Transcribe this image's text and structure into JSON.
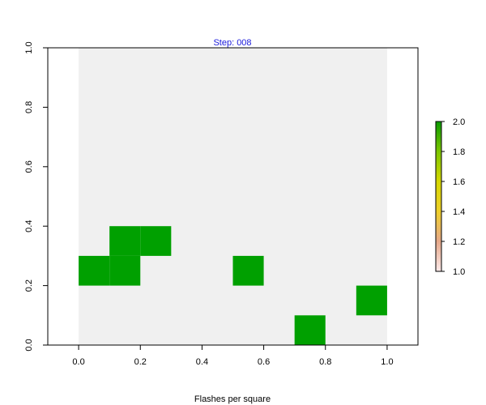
{
  "chart_data": {
    "type": "heatmap",
    "title": "Step: 008",
    "xlabel": "Flashes per square",
    "ylabel": "",
    "xlim": [
      -0.1,
      1.1
    ],
    "ylim": [
      0.0,
      1.0
    ],
    "x_ticks": [
      "0.0",
      "0.2",
      "0.4",
      "0.6",
      "0.8",
      "1.0"
    ],
    "y_ticks": [
      "0.0",
      "0.2",
      "0.4",
      "0.6",
      "0.8",
      "1.0"
    ],
    "grid_extent": {
      "x": [
        0.0,
        1.0
      ],
      "y": [
        0.0,
        1.0
      ]
    },
    "cell_size": 0.1,
    "cells": [
      {
        "x": 0.0,
        "y": 0.2,
        "value": 2
      },
      {
        "x": 0.1,
        "y": 0.2,
        "value": 2
      },
      {
        "x": 0.1,
        "y": 0.3,
        "value": 2
      },
      {
        "x": 0.2,
        "y": 0.3,
        "value": 2
      },
      {
        "x": 0.5,
        "y": 0.2,
        "value": 2
      },
      {
        "x": 0.7,
        "y": 0.0,
        "value": 2
      },
      {
        "x": 0.9,
        "y": 0.1,
        "value": 2
      }
    ],
    "colorbar": {
      "range": [
        1.0,
        2.0
      ],
      "ticks": [
        "1.0",
        "1.2",
        "1.4",
        "1.6",
        "1.8",
        "2.0"
      ],
      "stops": [
        "#fbe9e9",
        "#e6a88a",
        "#eecf2a",
        "#d6d700",
        "#7cc600",
        "#0a9a00"
      ]
    },
    "colors": {
      "title": "#1a1adb",
      "background_field": "#f0f0f0",
      "cell_fill": "#00a000",
      "axis": "#000000"
    },
    "legend": "right"
  }
}
